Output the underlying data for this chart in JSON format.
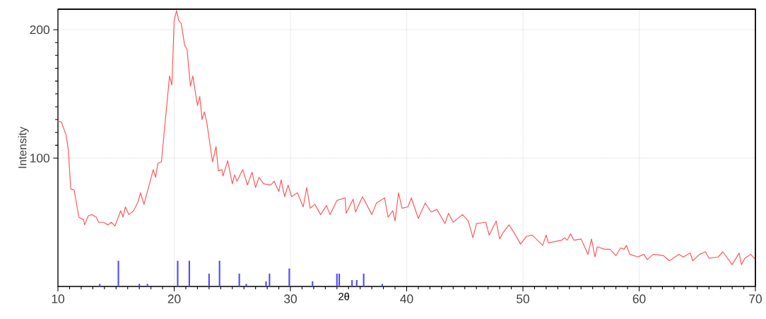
{
  "chart_data": {
    "type": "line",
    "xlabel": "2θ",
    "ylabel": "Intensity",
    "xlim": [
      10,
      70
    ],
    "ylim": [
      0,
      216
    ],
    "xticks": [
      10,
      20,
      30,
      40,
      50,
      60,
      70
    ],
    "yticks": [
      100,
      200
    ],
    "grid": true,
    "series": [
      {
        "color": "#ff5a5a",
        "x": [
          10.0,
          10.3,
          10.7,
          10.9,
          11.1,
          11.4,
          11.8,
          12.2,
          12.3,
          12.6,
          12.9,
          13.3,
          13.5,
          13.9,
          14.3,
          14.6,
          14.9,
          15.4,
          15.6,
          15.8,
          16.1,
          16.5,
          16.9,
          17.1,
          17.4,
          17.7,
          18.2,
          18.4,
          18.6,
          18.9,
          19.6,
          19.8,
          20.0,
          20.2,
          20.4,
          20.6,
          20.9,
          21.1,
          21.4,
          21.6,
          22.0,
          22.2,
          22.4,
          22.6,
          22.8,
          23.3,
          23.6,
          23.8,
          24.1,
          24.2,
          24.6,
          25.0,
          25.2,
          25.4,
          25.9,
          26.3,
          26.7,
          27.0,
          27.3,
          27.7,
          28.3,
          28.6,
          29.0,
          29.2,
          29.5,
          29.8,
          30.1,
          30.6,
          31.1,
          31.4,
          31.7,
          32.1,
          32.6,
          33.1,
          33.4,
          34.0,
          34.7,
          34.8,
          35.4,
          35.6,
          36.2,
          37.0,
          37.4,
          38.1,
          38.4,
          38.8,
          39.0,
          39.3,
          39.6,
          40.1,
          40.4,
          41.0,
          41.6,
          42.1,
          42.6,
          43.3,
          43.6,
          44.0,
          44.8,
          45.3,
          45.7,
          46.0,
          46.8,
          47.1,
          47.7,
          48.0,
          48.3,
          48.8,
          49.3,
          49.8,
          50.3,
          50.8,
          51.7,
          52.0,
          52.2,
          53.3,
          53.6,
          53.8,
          54.1,
          54.4,
          55.0,
          55.6,
          55.9,
          56.2,
          56.4,
          57.0,
          57.5,
          58.0,
          58.4,
          58.7,
          58.9,
          59.2,
          59.9,
          60.4,
          60.7,
          61.2,
          62.1,
          62.6,
          63.4,
          63.8,
          64.4,
          64.6,
          65.2,
          65.7,
          66.0,
          66.8,
          67.2,
          68.0,
          68.6,
          68.8,
          69.1,
          69.6,
          70.0
        ],
        "values": [
          129,
          128,
          118,
          106,
          76,
          75,
          54,
          52,
          48,
          55,
          56,
          54,
          50,
          50,
          48,
          50,
          47,
          59,
          54,
          62,
          56,
          59,
          66,
          73,
          64,
          74,
          91,
          85,
          96,
          97,
          164,
          157,
          207,
          215,
          207,
          205,
          188,
          185,
          156,
          164,
          141,
          148,
          130,
          136,
          128,
          97,
          109,
          90,
          91,
          86,
          98,
          80,
          87,
          82,
          91,
          79,
          89,
          77,
          85,
          80,
          79,
          82,
          74,
          83,
          70,
          79,
          70,
          73,
          62,
          77,
          61,
          64,
          56,
          63,
          56,
          67,
          69,
          57,
          68,
          58,
          70,
          56,
          65,
          69,
          54,
          59,
          51,
          73,
          61,
          62,
          69,
          53,
          65,
          58,
          60,
          49,
          57,
          50,
          56,
          51,
          38,
          49,
          50,
          40,
          51,
          37,
          42,
          48,
          41,
          33,
          39,
          40,
          32,
          40,
          34,
          36,
          38,
          36,
          41,
          36,
          37,
          25,
          37,
          23,
          31,
          29,
          29,
          24,
          30,
          29,
          32,
          25,
          23,
          25,
          21,
          25,
          24,
          20,
          25,
          23,
          26,
          20,
          25,
          27,
          22,
          23,
          27,
          17,
          26,
          17,
          22,
          25,
          21
        ]
      },
      {
        "type": "bar",
        "color": "#4d4dff",
        "x": [
          13.6,
          15.2,
          17.0,
          17.7,
          20.3,
          21.3,
          23.0,
          23.9,
          25.6,
          26.2,
          27.9,
          28.2,
          29.9,
          31.9,
          34.0,
          34.2,
          35.3,
          35.7,
          36.3,
          37.9
        ],
        "values": [
          2,
          20,
          2,
          2,
          20,
          20,
          10,
          20,
          10,
          2,
          4,
          10,
          14,
          4,
          10,
          10,
          5,
          5,
          10,
          2
        ]
      }
    ]
  }
}
